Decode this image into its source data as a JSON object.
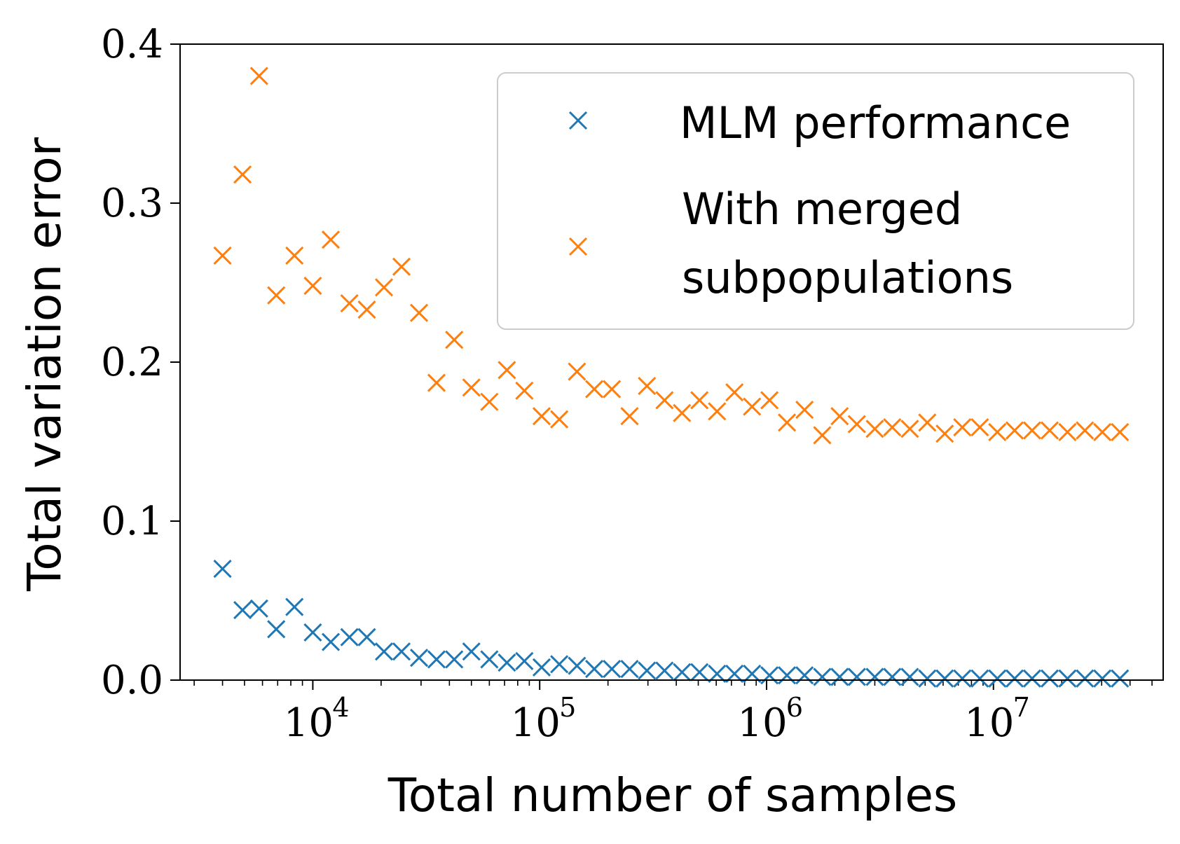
{
  "chart_data": {
    "type": "scatter",
    "xscale": "log",
    "xlabel": "Total number of samples",
    "ylabel": "Total variation error",
    "xlim": [
      2600,
      56000000
    ],
    "ylim": [
      0,
      0.4
    ],
    "yticks": [
      {
        "value": 0.0,
        "label": "0.0"
      },
      {
        "value": 0.1,
        "label": "0.1"
      },
      {
        "value": 0.2,
        "label": "0.2"
      },
      {
        "value": 0.3,
        "label": "0.3"
      },
      {
        "value": 0.4,
        "label": "0.4"
      }
    ],
    "xticks": [
      {
        "value": 10000,
        "base": "10",
        "exp": "4"
      },
      {
        "value": 100000,
        "base": "10",
        "exp": "5"
      },
      {
        "value": 1000000,
        "base": "10",
        "exp": "6"
      },
      {
        "value": 10000000,
        "base": "10",
        "exp": "7"
      }
    ],
    "legend_placement": "top-right",
    "series": [
      {
        "name": "MLM performance",
        "color": "#1f77b4",
        "marker": "x",
        "points": [
          [
            4000,
            0.07
          ],
          [
            4900,
            0.044
          ],
          [
            5800,
            0.045
          ],
          [
            6900,
            0.032
          ],
          [
            8300,
            0.046
          ],
          [
            10000,
            0.03
          ],
          [
            12000,
            0.024
          ],
          [
            14500,
            0.027
          ],
          [
            17300,
            0.027
          ],
          [
            20600,
            0.018
          ],
          [
            24600,
            0.018
          ],
          [
            29400,
            0.014
          ],
          [
            35100,
            0.013
          ],
          [
            42000,
            0.013
          ],
          [
            50000,
            0.018
          ],
          [
            60000,
            0.013
          ],
          [
            71700,
            0.011
          ],
          [
            85600,
            0.012
          ],
          [
            102000,
            0.008
          ],
          [
            122000,
            0.01
          ],
          [
            146000,
            0.009
          ],
          [
            174000,
            0.007
          ],
          [
            208000,
            0.007
          ],
          [
            249000,
            0.007
          ],
          [
            297000,
            0.006
          ],
          [
            355000,
            0.006
          ],
          [
            424000,
            0.005
          ],
          [
            506000,
            0.005
          ],
          [
            605000,
            0.004
          ],
          [
            722000,
            0.004
          ],
          [
            863000,
            0.004
          ],
          [
            1030000,
            0.003
          ],
          [
            1230000,
            0.003
          ],
          [
            1470000,
            0.003
          ],
          [
            1760000,
            0.002
          ],
          [
            2100000,
            0.002
          ],
          [
            2500000,
            0.002
          ],
          [
            3000000,
            0.002
          ],
          [
            3580000,
            0.002
          ],
          [
            4280000,
            0.002
          ],
          [
            5110000,
            0.001
          ],
          [
            6100000,
            0.001
          ],
          [
            7290000,
            0.001
          ],
          [
            8710000,
            0.001
          ],
          [
            10400000,
            0.001
          ],
          [
            12400000,
            0.001
          ],
          [
            14800000,
            0.001
          ],
          [
            17700000,
            0.001
          ],
          [
            21200000,
            0.001
          ],
          [
            25300000,
            0.001
          ],
          [
            30200000,
            0.001
          ],
          [
            36100000,
            0.001
          ]
        ]
      },
      {
        "name": "With merged subpopulations",
        "legend_lines": [
          "With merged",
          "subpopulations"
        ],
        "color": "#ff7f0e",
        "marker": "x",
        "points": [
          [
            4000,
            0.267
          ],
          [
            4900,
            0.318
          ],
          [
            5800,
            0.38
          ],
          [
            6900,
            0.242
          ],
          [
            8300,
            0.267
          ],
          [
            10000,
            0.248
          ],
          [
            12000,
            0.277
          ],
          [
            14500,
            0.237
          ],
          [
            17300,
            0.233
          ],
          [
            20600,
            0.247
          ],
          [
            24600,
            0.26
          ],
          [
            29400,
            0.231
          ],
          [
            35100,
            0.187
          ],
          [
            42000,
            0.214
          ],
          [
            50000,
            0.184
          ],
          [
            60000,
            0.175
          ],
          [
            71700,
            0.195
          ],
          [
            85600,
            0.182
          ],
          [
            102000,
            0.166
          ],
          [
            122000,
            0.164
          ],
          [
            146000,
            0.194
          ],
          [
            174000,
            0.183
          ],
          [
            208000,
            0.183
          ],
          [
            249000,
            0.166
          ],
          [
            297000,
            0.185
          ],
          [
            355000,
            0.176
          ],
          [
            424000,
            0.168
          ],
          [
            506000,
            0.176
          ],
          [
            605000,
            0.169
          ],
          [
            722000,
            0.181
          ],
          [
            863000,
            0.172
          ],
          [
            1030000,
            0.176
          ],
          [
            1230000,
            0.162
          ],
          [
            1470000,
            0.17
          ],
          [
            1760000,
            0.154
          ],
          [
            2100000,
            0.166
          ],
          [
            2500000,
            0.161
          ],
          [
            3000000,
            0.158
          ],
          [
            3580000,
            0.159
          ],
          [
            4280000,
            0.158
          ],
          [
            5110000,
            0.162
          ],
          [
            6100000,
            0.155
          ],
          [
            7290000,
            0.159
          ],
          [
            8710000,
            0.159
          ],
          [
            10400000,
            0.156
          ],
          [
            12400000,
            0.157
          ],
          [
            14800000,
            0.157
          ],
          [
            17700000,
            0.157
          ],
          [
            21200000,
            0.156
          ],
          [
            25300000,
            0.157
          ],
          [
            30200000,
            0.156
          ],
          [
            36100000,
            0.156
          ]
        ]
      }
    ]
  }
}
